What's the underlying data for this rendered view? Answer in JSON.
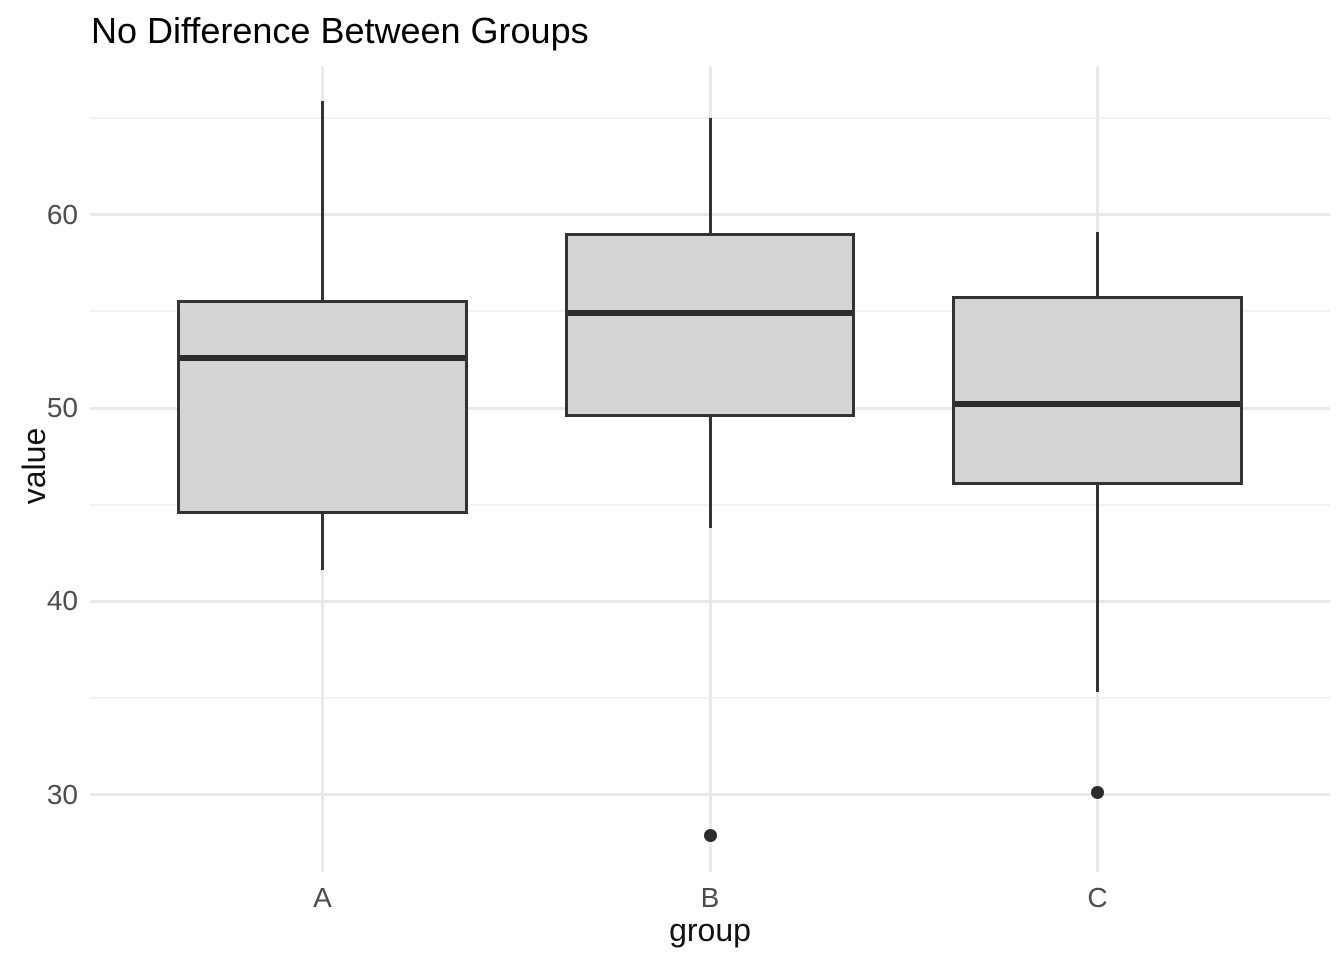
{
  "title": "No Difference Between Groups",
  "chart_data": {
    "type": "boxplot",
    "title": "No Difference Between Groups",
    "xlabel": "group",
    "ylabel": "value",
    "categories": [
      "A",
      "B",
      "C"
    ],
    "ylim": [
      26,
      67.7
    ],
    "y_ticks": [
      60,
      50,
      40,
      30
    ],
    "y_minor_ticks": [
      65,
      55,
      45,
      35
    ],
    "grid": "horizontal major+minor gridlines, one vertical gridline per category, no axis lines, no tick marks",
    "legend": "none",
    "series": [
      {
        "name": "A",
        "whisker_low": 41.6,
        "q1": 44.6,
        "median": 52.6,
        "q3": 55.5,
        "whisker_high": 65.9,
        "outliers": []
      },
      {
        "name": "B",
        "whisker_low": 43.8,
        "q1": 49.6,
        "median": 54.9,
        "q3": 59.0,
        "whisker_high": 65.0,
        "outliers": [
          27.9
        ]
      },
      {
        "name": "C",
        "whisker_low": 35.3,
        "q1": 46.1,
        "median": 50.2,
        "q3": 55.7,
        "whisker_high": 59.1,
        "outliers": [
          30.1
        ]
      }
    ],
    "colors": {
      "background": "#ffffff",
      "box_fill": "#d4d4d4",
      "box_border": "#333333",
      "median": "#2b2b2b",
      "whisker": "#333333",
      "outlier": "#2b2b2b",
      "grid_major": "#e9e9e9",
      "grid_minor": "#f2f2f2",
      "tick_label": "#4d4d4d",
      "axis_title": "#111111",
      "title": "#000000"
    }
  }
}
